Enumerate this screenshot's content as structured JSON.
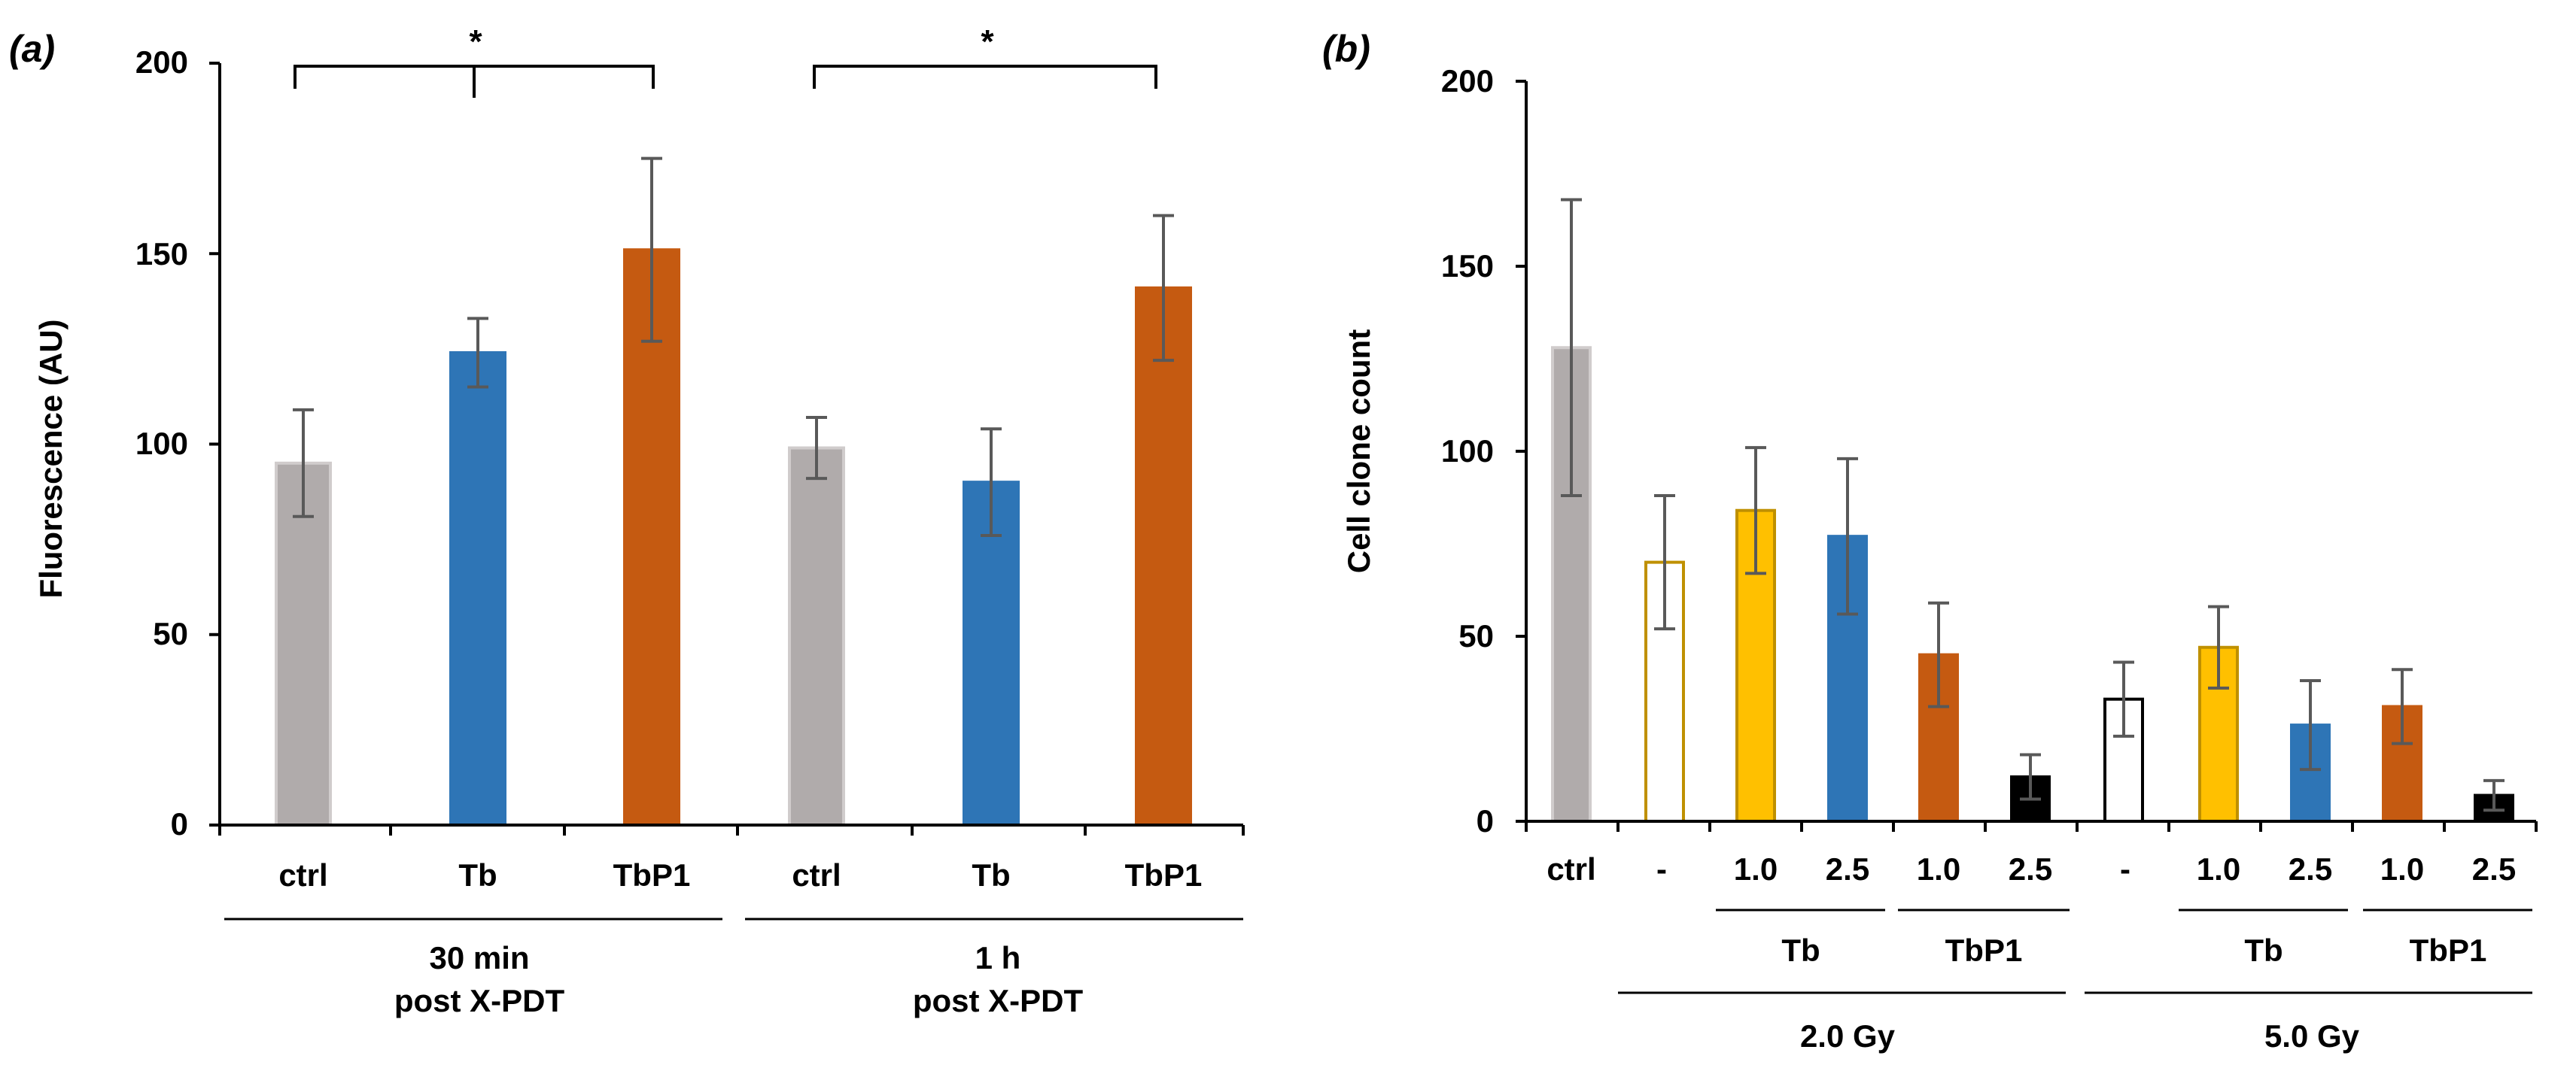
{
  "chart_data": [
    {
      "panel": "(a)",
      "type": "bar",
      "ylabel": "Fluorescence  (AU)",
      "ylim": [
        0,
        200
      ],
      "yticks": [
        "0",
        "50",
        "100",
        "150",
        "200"
      ],
      "categories": [
        "ctrl",
        "Tb",
        "TbP1",
        "ctrl",
        "Tb",
        "TbP1"
      ],
      "values": [
        95,
        124,
        151,
        99,
        90,
        141
      ],
      "errors": [
        14,
        9,
        24,
        8,
        14,
        19
      ],
      "colors": [
        "#b0abab",
        "#2e75b6",
        "#c55a11",
        "#b0abab",
        "#2e75b6",
        "#c55a11"
      ],
      "groups": [
        {
          "line1": "30 min",
          "line2": "post X-PDT"
        },
        {
          "line1": "1 h",
          "line2": "post X-PDT"
        }
      ],
      "significance": [
        "*",
        "*"
      ]
    },
    {
      "panel": "(b)",
      "type": "bar",
      "ylabel": "Cell clone count",
      "ylim": [
        0,
        200
      ],
      "yticks": [
        "0",
        "50",
        "100",
        "150",
        "200"
      ],
      "categories": [
        "ctrl",
        "-",
        "1.0",
        "2.5",
        "1.0",
        "2.5",
        "-",
        "1.0",
        "2.5",
        "1.0",
        "2.5"
      ],
      "values": [
        128,
        70,
        84,
        77,
        45,
        12,
        33,
        47,
        26,
        31,
        7
      ],
      "errors": [
        40,
        18,
        17,
        21,
        14,
        6,
        10,
        11,
        12,
        10,
        4
      ],
      "fills": [
        "#b0abab",
        "#ffffff",
        "#ffc000",
        "#2e75b6",
        "#c55a11",
        "#000000",
        "#ffffff",
        "#ffc000",
        "#2e75b6",
        "#c55a11",
        "#000000"
      ],
      "strokes": [
        "#d0cccc",
        "#bf9000",
        "#bf9000",
        "#2e75b6",
        "#c55a11",
        "#000000",
        "#000000",
        "#bf9000",
        "#2e75b6",
        "#c55a11",
        "#000000"
      ],
      "subgroups": [
        "Tb",
        "TbP1",
        "Tb",
        "TbP1"
      ],
      "groups": [
        "2.0 Gy",
        "5.0 Gy"
      ]
    }
  ]
}
